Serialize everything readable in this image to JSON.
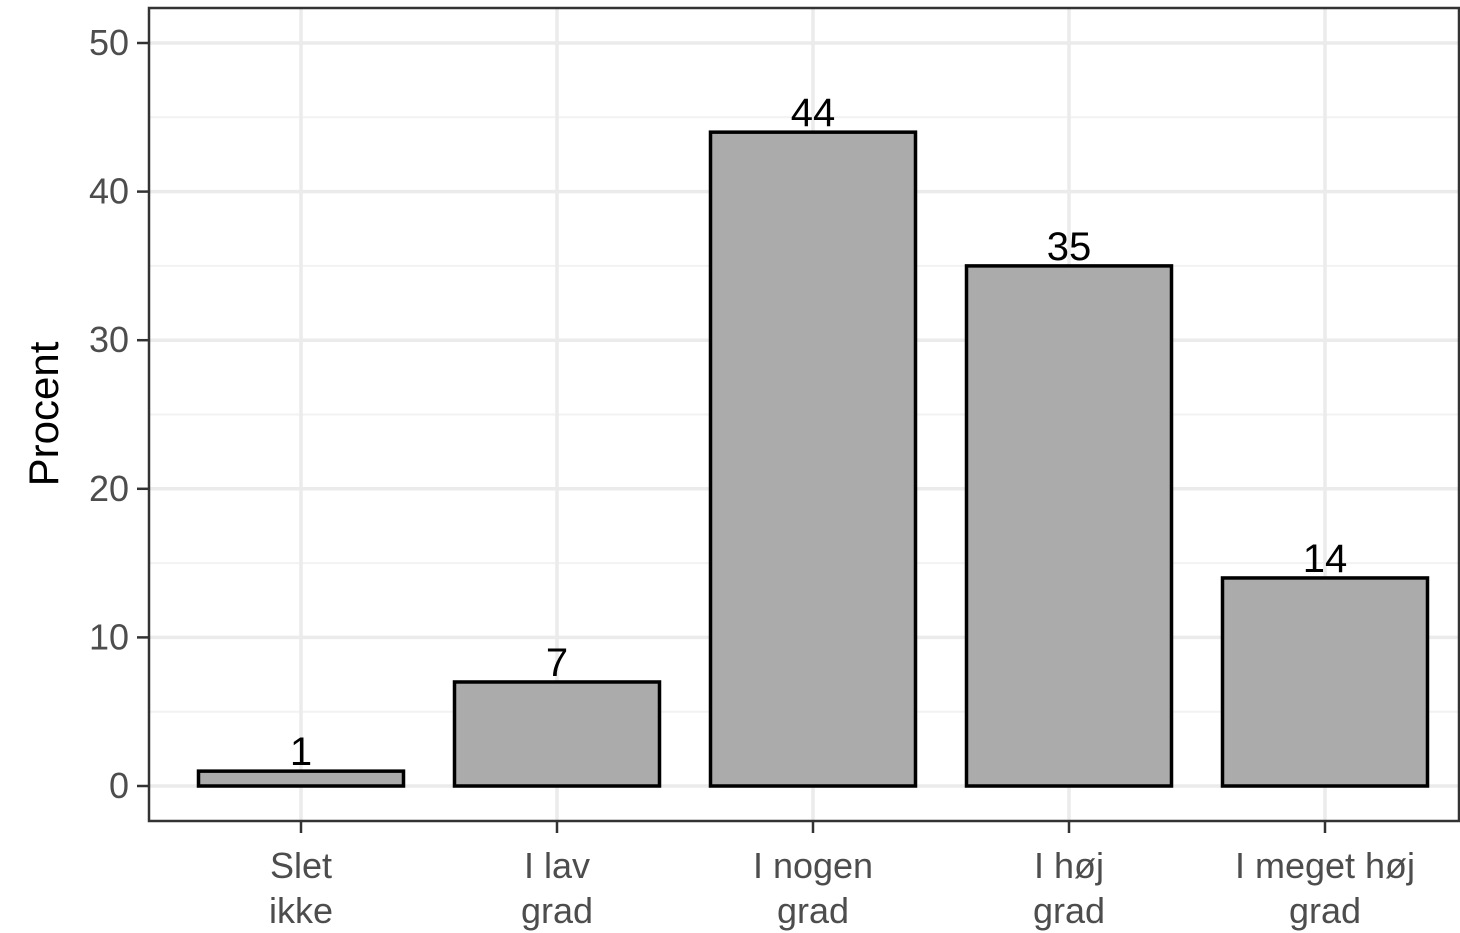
{
  "chart_data": {
    "type": "bar",
    "categories": [
      [
        "Slet",
        "ikke"
      ],
      [
        "I lav",
        "grad"
      ],
      [
        "I nogen",
        "grad"
      ],
      [
        "I høj",
        "grad"
      ],
      [
        "I meget høj",
        "grad"
      ]
    ],
    "values": [
      1,
      7,
      44,
      35,
      14
    ],
    "data_labels": [
      "1",
      "7",
      "44",
      "35",
      "14"
    ],
    "title": "",
    "xlabel": "",
    "ylabel": "Procent",
    "ylim": [
      0,
      50
    ],
    "yticks": [
      0,
      10,
      20,
      30,
      40,
      50
    ],
    "grid": true,
    "legend": "none",
    "colors": {
      "bar_fill": "#ababab",
      "bar_stroke": "#000000",
      "grid_major": "#ebebeb",
      "grid_minor": "#f2f2f2",
      "panel_border": "#333333",
      "tick_text": "#4d4d4d"
    }
  }
}
